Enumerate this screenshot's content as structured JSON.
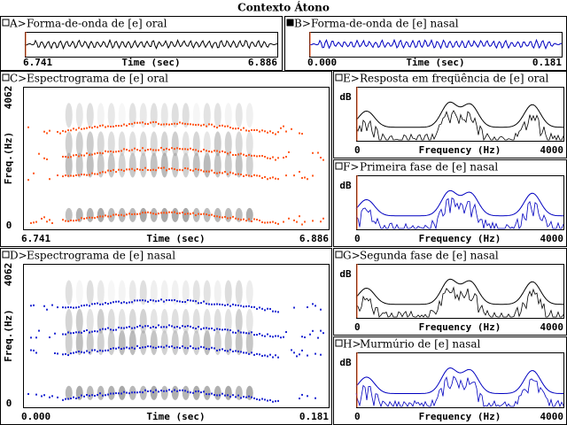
{
  "title": "Contexto Átono",
  "panels": [
    {
      "label": "A>",
      "title": "Forma-de-onda de [e] oral",
      "x_start": "6.741",
      "x_axis": "Time (sec)",
      "x_end": "6.886"
    },
    {
      "label": "B>",
      "title": "Forma-de-onda de [e] nasal",
      "x_start": "0.000",
      "x_axis": "Time (sec)",
      "x_end": "0.181"
    },
    {
      "label": "C>",
      "title": "Espectrograma de [e] oral",
      "y_top": "4062",
      "y_axis": "Freq.(Hz)",
      "y_bottom": "0",
      "x_start": "6.741",
      "x_axis": "Time (sec)",
      "x_end": "6.886"
    },
    {
      "label": "D>",
      "title": "Espectrograma de [e] nasal",
      "y_top": "4062",
      "y_axis": "Freq.(Hz)",
      "y_bottom": "0",
      "x_start": "0.000",
      "x_axis": "Time (sec)",
      "x_end": "0.181"
    },
    {
      "label": "E>",
      "title": "Resposta em freqüência de [e] oral",
      "y_axis": "dB",
      "x_start": "0",
      "x_axis": "Frequency (Hz)",
      "x_end": "4000"
    },
    {
      "label": "F>",
      "title": "Primeira fase de [e] nasal",
      "y_axis": "dB",
      "x_start": "0",
      "x_axis": "Frequency (Hz)",
      "x_end": "4000"
    },
    {
      "label": "G>",
      "title": "Segunda fase de [e] nasal",
      "y_axis": "dB",
      "x_start": "0",
      "x_axis": "Frequency (Hz)",
      "x_end": "4000"
    },
    {
      "label": "H>",
      "title": "Murmúrio de [e] nasal",
      "y_axis": "dB",
      "x_start": "0",
      "x_axis": "Frequency (Hz)",
      "x_end": "4000"
    }
  ]
}
